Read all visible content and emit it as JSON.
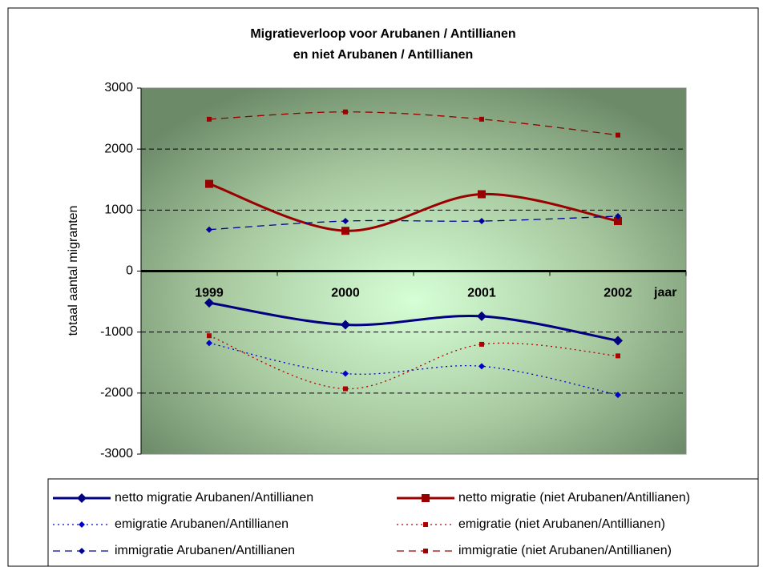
{
  "chart_data": {
    "type": "line",
    "title": [
      "Migratieverloop voor Arubanen / Antillianen",
      "en niet Arubanen / Antillianen"
    ],
    "y_label": "totaal aantal migranten",
    "x_label": "jaar",
    "categories": [
      "1999",
      "2000",
      "2001",
      "2002"
    ],
    "ylim": [
      -3000,
      3000
    ],
    "yticks": [
      -3000,
      -2000,
      -1000,
      0,
      1000,
      2000,
      3000
    ],
    "grid": true,
    "smooth": true,
    "series": [
      {
        "name": "netto migratie Arubanen/Antillianen",
        "color": "#000080",
        "line_style": "solid",
        "marker": "diamond",
        "values": [
          -520,
          -880,
          -740,
          -1140
        ]
      },
      {
        "name": "netto migratie (niet Arubanen/Antillianen)",
        "color": "#990000",
        "line_style": "solid",
        "marker": "square",
        "values": [
          1430,
          660,
          1260,
          820
        ]
      },
      {
        "name": "emigratie Arubanen/Antillianen",
        "color": "#0000cc",
        "line_style": "dotted",
        "marker": "diamond",
        "values": [
          -1180,
          -1680,
          -1560,
          -2030
        ]
      },
      {
        "name": "emigratie (niet Arubanen/Antillianen)",
        "color": "#b00000",
        "line_style": "dotted",
        "marker": "square",
        "values": [
          -1060,
          -1930,
          -1200,
          -1390
        ]
      },
      {
        "name": "immigratie Arubanen/Antillianen",
        "color": "#000099",
        "line_style": "dashed",
        "marker": "diamond",
        "values": [
          680,
          820,
          820,
          900
        ]
      },
      {
        "name": "immigratie (niet Arubanen/Antillianen)",
        "color": "#990000",
        "line_style": "dashed",
        "marker": "square",
        "values": [
          2490,
          2610,
          2490,
          2230
        ]
      }
    ]
  }
}
